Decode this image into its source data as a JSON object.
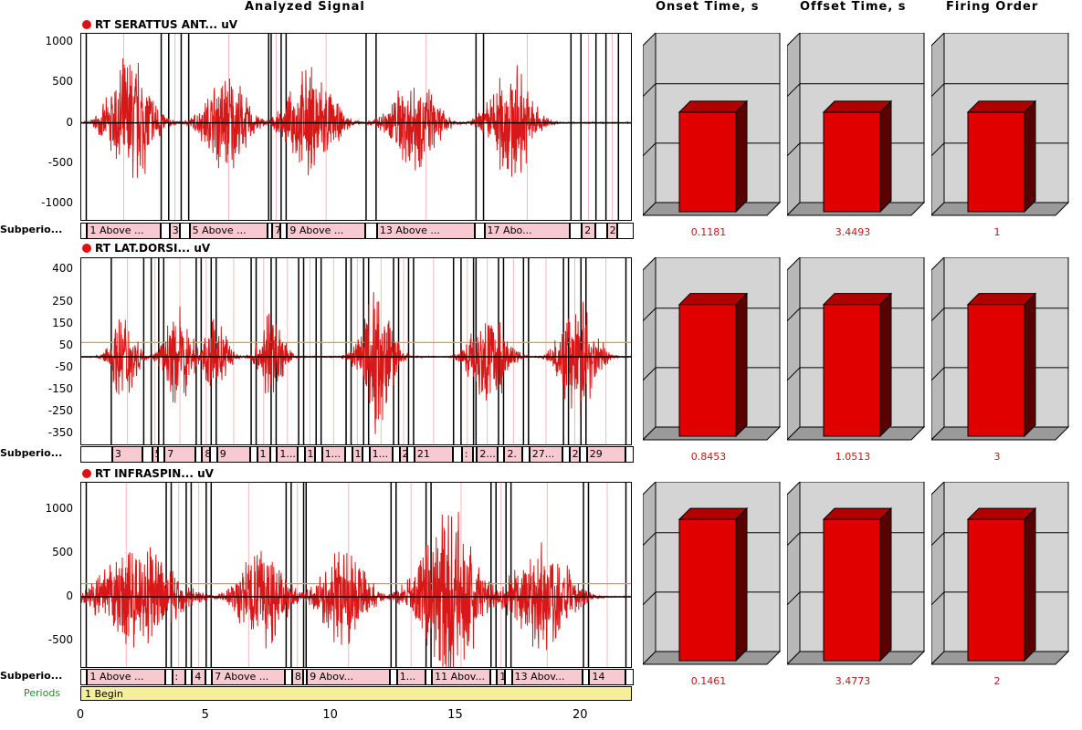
{
  "headers": {
    "analyzed_signal": "Analyzed Signal",
    "onset_time": "Onset Time, s",
    "offset_time": "Offset Time, s",
    "firing_order": "Firing Order"
  },
  "colors": {
    "signal": "#d81818",
    "bar_front": "#e00000",
    "bar_top": "#b00000",
    "bar_side": "#5a0000",
    "panel_bg": "#d4d4d4",
    "subperiod_cell": "#f7c9d0",
    "periods_bar": "#f5ee9a"
  },
  "subperiods_label": "Subperio...",
  "periods_label": "Periods",
  "periods_value": "1 Begin",
  "chart_data": {
    "type": "line",
    "xlabel": "",
    "x_range": [
      0,
      22
    ],
    "x_ticks": [
      "0",
      "5",
      "10",
      "15",
      "20"
    ],
    "channels": [
      {
        "title": "RT SERATTUS ANT... uV",
        "y_ticks": [
          "1000",
          "500",
          "0",
          "-500",
          "-1000"
        ],
        "ylim": [
          -1200,
          1100
        ],
        "threshold_uV": null,
        "bursts": [
          {
            "center_s": 2.0,
            "halfwidth_s": 1.2,
            "peak_uV": 1000
          },
          {
            "center_s": 5.8,
            "halfwidth_s": 1.2,
            "peak_uV": 750
          },
          {
            "center_s": 9.2,
            "halfwidth_s": 1.3,
            "peak_uV": 800
          },
          {
            "center_s": 13.3,
            "halfwidth_s": 1.3,
            "peak_uV": 700
          },
          {
            "center_s": 17.2,
            "halfwidth_s": 1.2,
            "peak_uV": 850
          }
        ],
        "subperiods": [
          {
            "start_s": 0.2,
            "end_s": 3.2,
            "label": "1 Above ..."
          },
          {
            "start_s": 3.5,
            "end_s": 4.0,
            "label": "3"
          },
          {
            "start_s": 4.3,
            "end_s": 7.5,
            "label": "5 Above ..."
          },
          {
            "start_s": 7.6,
            "end_s": 8.0,
            "label": "7"
          },
          {
            "start_s": 8.2,
            "end_s": 11.4,
            "label": "9 Above ..."
          },
          {
            "start_s": 11.8,
            "end_s": 15.8,
            "label": "13 Above ..."
          },
          {
            "start_s": 16.1,
            "end_s": 19.6,
            "label": "17 Abo..."
          },
          {
            "start_s": 20.0,
            "end_s": 20.6,
            "label": "2"
          },
          {
            "start_s": 21.0,
            "end_s": 21.5,
            "label": "2"
          }
        ],
        "results": {
          "onset_s": "0.1181",
          "offset_s": "3.4493",
          "firing_order": "1",
          "onset_fill": 0.62,
          "offset_fill": 0.62,
          "order_fill": 0.62
        }
      },
      {
        "title": "RT LAT.DORSI... uV",
        "y_ticks": [
          "400",
          "250",
          "150",
          "50",
          "-50",
          "-150",
          "-250",
          "-350"
        ],
        "ylim": [
          -400,
          450
        ],
        "threshold_uV": 65,
        "bursts": [
          {
            "center_s": 1.7,
            "halfwidth_s": 0.7,
            "peak_uV": 250
          },
          {
            "center_s": 3.9,
            "halfwidth_s": 0.8,
            "peak_uV": 250
          },
          {
            "center_s": 5.4,
            "halfwidth_s": 0.7,
            "peak_uV": 200
          },
          {
            "center_s": 7.6,
            "halfwidth_s": 0.7,
            "peak_uV": 250
          },
          {
            "center_s": 11.8,
            "halfwidth_s": 0.9,
            "peak_uV": 400
          },
          {
            "center_s": 16.3,
            "halfwidth_s": 1.0,
            "peak_uV": 280
          },
          {
            "center_s": 19.9,
            "halfwidth_s": 1.0,
            "peak_uV": 320
          }
        ],
        "subperiods": [
          {
            "start_s": 1.2,
            "end_s": 2.5,
            "label": "3"
          },
          {
            "start_s": 2.8,
            "end_s": 3.1,
            "label": "5"
          },
          {
            "start_s": 3.3,
            "end_s": 4.6,
            "label": "7"
          },
          {
            "start_s": 4.8,
            "end_s": 5.2,
            "label": "8"
          },
          {
            "start_s": 5.4,
            "end_s": 6.8,
            "label": "9"
          },
          {
            "start_s": 7.0,
            "end_s": 7.6,
            "label": "1"
          },
          {
            "start_s": 7.8,
            "end_s": 8.7,
            "label": "1..."
          },
          {
            "start_s": 8.9,
            "end_s": 9.4,
            "label": "1"
          },
          {
            "start_s": 9.6,
            "end_s": 10.6,
            "label": "1..."
          },
          {
            "start_s": 10.8,
            "end_s": 11.3,
            "label": "1"
          },
          {
            "start_s": 11.5,
            "end_s": 12.5,
            "label": "1..."
          },
          {
            "start_s": 12.7,
            "end_s": 13.1,
            "label": "2"
          },
          {
            "start_s": 13.3,
            "end_s": 14.9,
            "label": "21"
          },
          {
            "start_s": 15.2,
            "end_s": 15.7,
            "label": ":"
          },
          {
            "start_s": 15.8,
            "end_s": 16.7,
            "label": "2..."
          },
          {
            "start_s": 16.9,
            "end_s": 17.7,
            "label": "2."
          },
          {
            "start_s": 17.9,
            "end_s": 19.3,
            "label": "27..."
          },
          {
            "start_s": 19.5,
            "end_s": 20.0,
            "label": "2."
          },
          {
            "start_s": 20.2,
            "end_s": 21.8,
            "label": "29"
          }
        ],
        "results": {
          "onset_s": "0.8453",
          "offset_s": "1.0513",
          "firing_order": "3",
          "onset_fill": 0.82,
          "offset_fill": 0.82,
          "order_fill": 0.82
        }
      },
      {
        "title": "RT INFRASPIN... uV",
        "y_ticks": [
          "1000",
          "500",
          "0",
          "-500"
        ],
        "ylim": [
          -800,
          1300
        ],
        "threshold_uV": 150,
        "bursts": [
          {
            "center_s": 2.3,
            "halfwidth_s": 2.1,
            "peak_uV": 700
          },
          {
            "center_s": 7.2,
            "halfwidth_s": 1.3,
            "peak_uV": 700
          },
          {
            "center_s": 10.5,
            "halfwidth_s": 1.3,
            "peak_uV": 650
          },
          {
            "center_s": 14.7,
            "halfwidth_s": 1.7,
            "peak_uV": 1100
          },
          {
            "center_s": 18.4,
            "halfwidth_s": 1.6,
            "peak_uV": 800
          }
        ],
        "subperiods": [
          {
            "start_s": 0.2,
            "end_s": 3.4,
            "label": "1 Above ..."
          },
          {
            "start_s": 3.6,
            "end_s": 4.2,
            "label": ":"
          },
          {
            "start_s": 4.4,
            "end_s": 5.0,
            "label": "4"
          },
          {
            "start_s": 5.2,
            "end_s": 8.2,
            "label": "7 Above ..."
          },
          {
            "start_s": 8.4,
            "end_s": 8.9,
            "label": "8."
          },
          {
            "start_s": 9.0,
            "end_s": 12.4,
            "label": "9 Abov..."
          },
          {
            "start_s": 12.6,
            "end_s": 13.8,
            "label": "1..."
          },
          {
            "start_s": 14.0,
            "end_s": 16.4,
            "label": "11 Abov..."
          },
          {
            "start_s": 16.6,
            "end_s": 17.0,
            "label": "1"
          },
          {
            "start_s": 17.2,
            "end_s": 20.1,
            "label": "13 Abov..."
          },
          {
            "start_s": 20.3,
            "end_s": 21.8,
            "label": "14"
          }
        ],
        "results": {
          "onset_s": "0.1461",
          "offset_s": "3.4773",
          "firing_order": "2",
          "onset_fill": 0.88,
          "offset_fill": 0.88,
          "order_fill": 0.88
        }
      }
    ]
  }
}
